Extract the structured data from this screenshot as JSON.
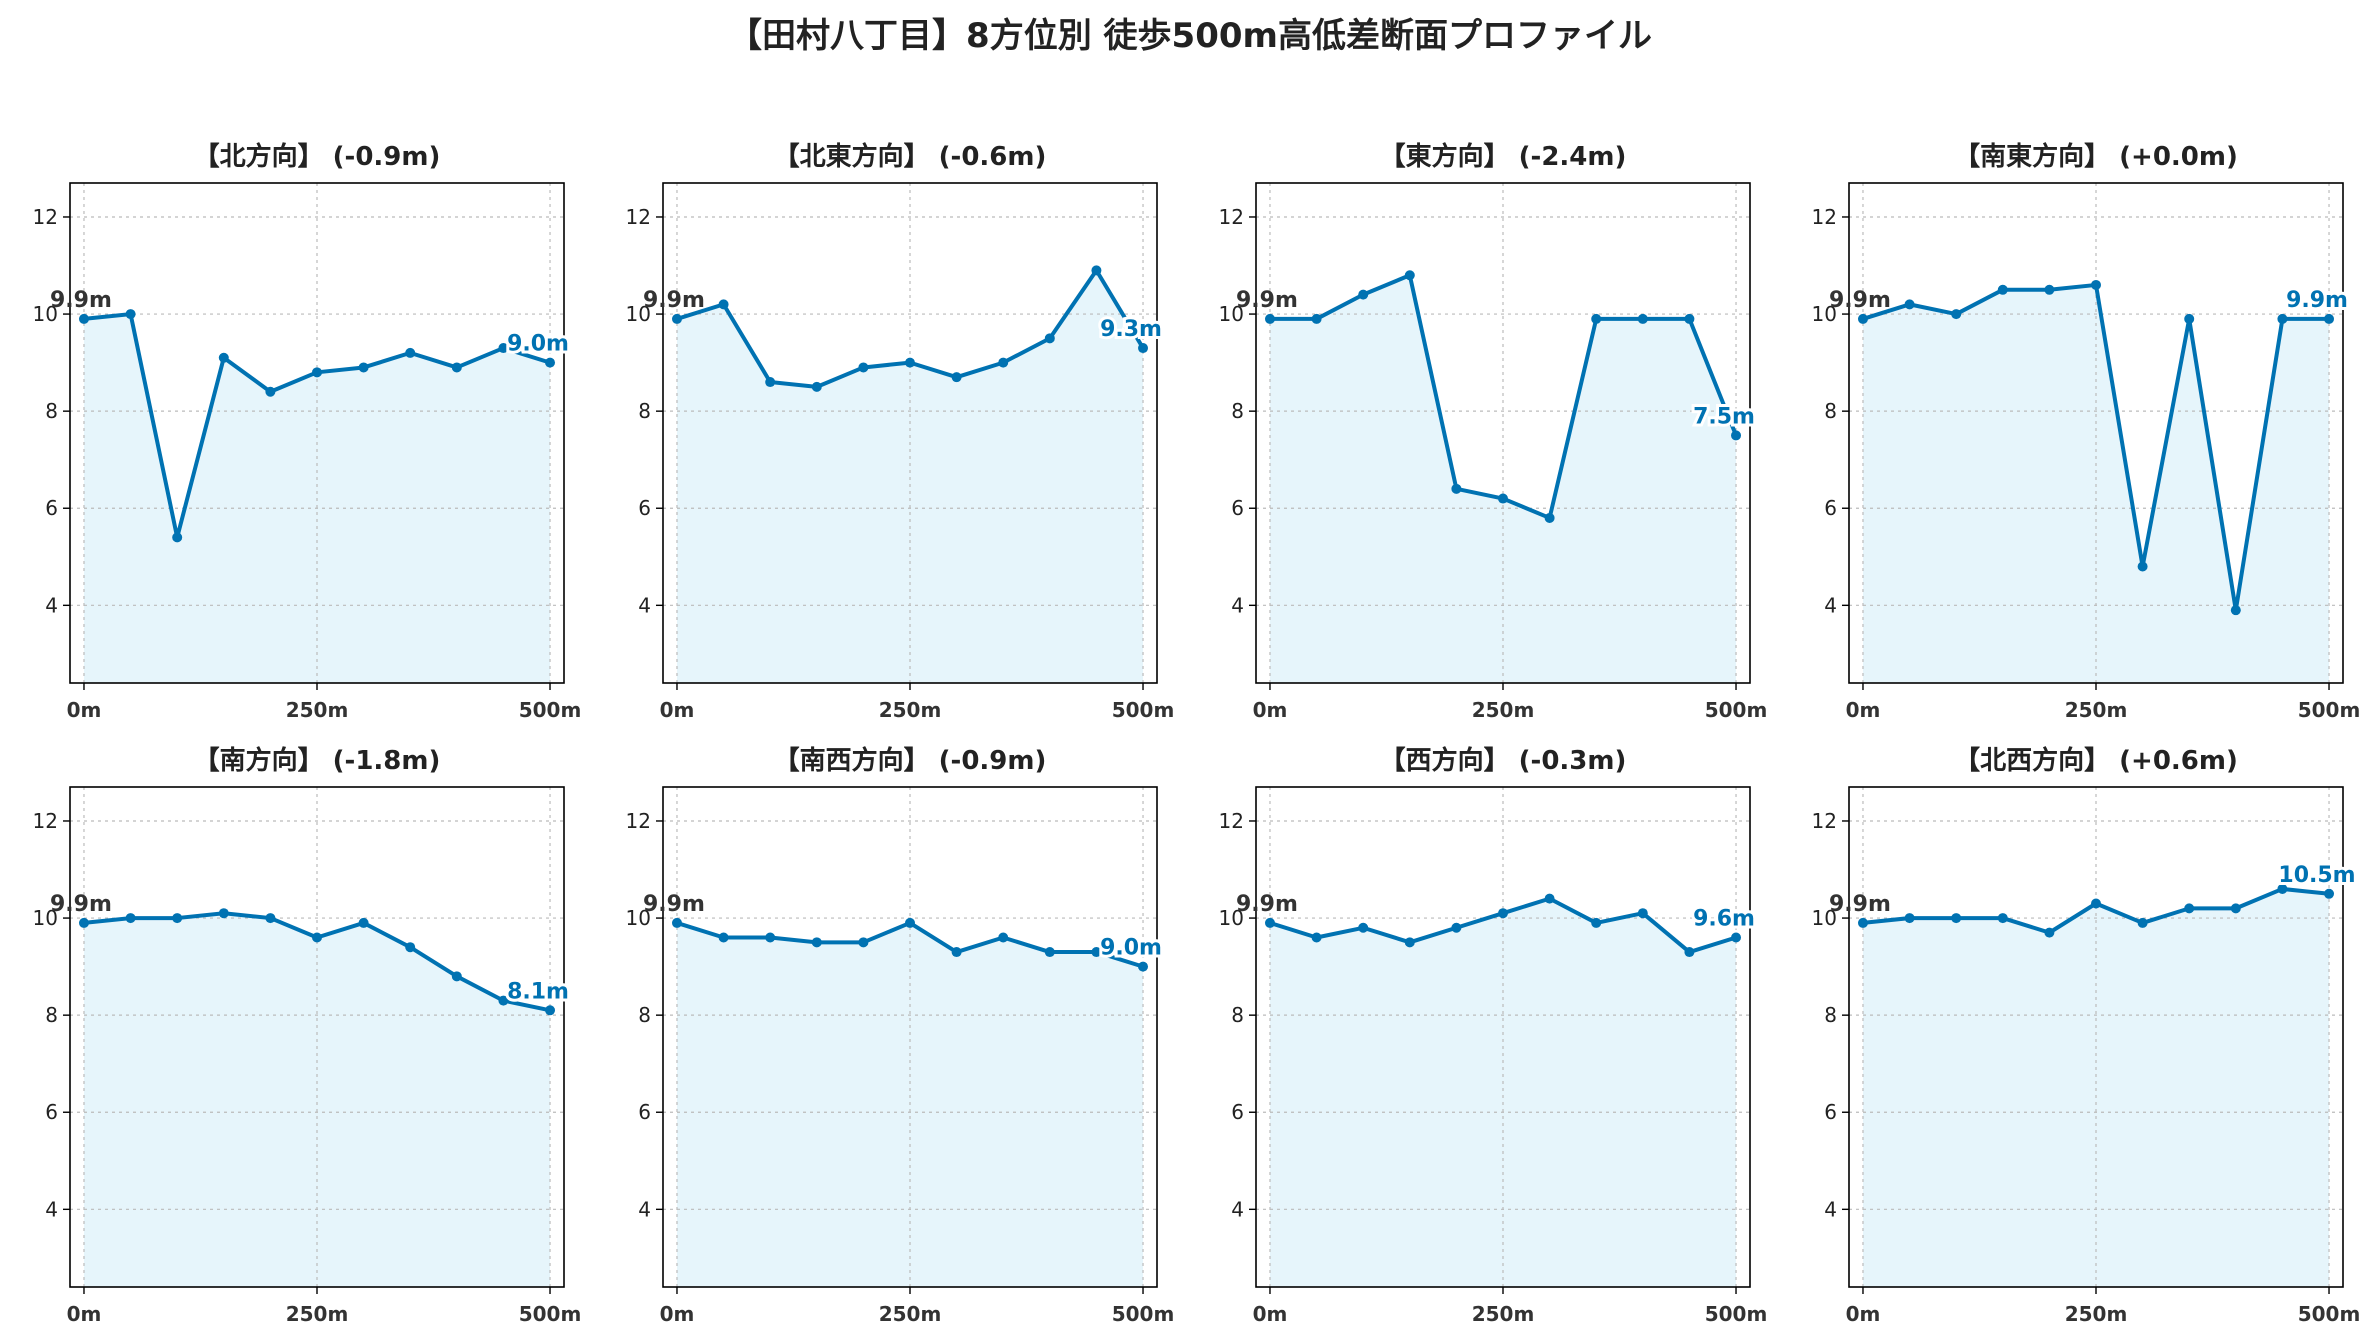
{
  "title": "【田村八丁目】8方位別 徒歩500m高低差断面プロファイル",
  "colors": {
    "line": "#0072b2",
    "fill": "#e6f5fb",
    "start_label": "#333333",
    "end_label": "#0072b2",
    "grid": "#bbbbbb",
    "axis": "#000000"
  },
  "chart_data": [
    {
      "type": "line",
      "title": "【北方向】 (-0.9m)",
      "x": [
        0,
        50,
        100,
        150,
        200,
        250,
        300,
        350,
        400,
        450,
        500
      ],
      "values": [
        9.9,
        10.0,
        5.4,
        9.1,
        8.4,
        8.8,
        8.9,
        9.2,
        8.9,
        9.3,
        9.0
      ],
      "start_label": "9.9m",
      "end_label": "9.0m",
      "xticks": [
        "0m",
        "250m",
        "500m"
      ],
      "yticks": [
        "4",
        "6",
        "8",
        "10",
        "12"
      ],
      "xlim": [
        -15,
        515
      ],
      "ylim": [
        2.4,
        12.7
      ],
      "grid": true
    },
    {
      "type": "line",
      "title": "【北東方向】 (-0.6m)",
      "x": [
        0,
        50,
        100,
        150,
        200,
        250,
        300,
        350,
        400,
        450,
        500
      ],
      "values": [
        9.9,
        10.2,
        8.6,
        8.5,
        8.9,
        9.0,
        8.7,
        9.0,
        9.5,
        10.9,
        9.3
      ],
      "start_label": "9.9m",
      "end_label": "9.3m",
      "xticks": [
        "0m",
        "250m",
        "500m"
      ],
      "yticks": [
        "4",
        "6",
        "8",
        "10",
        "12"
      ],
      "xlim": [
        -15,
        515
      ],
      "ylim": [
        2.4,
        12.7
      ],
      "grid": true
    },
    {
      "type": "line",
      "title": "【東方向】 (-2.4m)",
      "x": [
        0,
        50,
        100,
        150,
        200,
        250,
        300,
        350,
        400,
        450,
        500
      ],
      "values": [
        9.9,
        9.9,
        10.4,
        10.8,
        6.4,
        6.2,
        5.8,
        9.9,
        9.9,
        9.9,
        7.5
      ],
      "start_label": "9.9m",
      "end_label": "7.5m",
      "xticks": [
        "0m",
        "250m",
        "500m"
      ],
      "yticks": [
        "4",
        "6",
        "8",
        "10",
        "12"
      ],
      "xlim": [
        -15,
        515
      ],
      "ylim": [
        2.4,
        12.7
      ],
      "grid": true
    },
    {
      "type": "line",
      "title": "【南東方向】 (+0.0m)",
      "x": [
        0,
        50,
        100,
        150,
        200,
        250,
        300,
        350,
        400,
        450,
        500
      ],
      "values": [
        9.9,
        10.2,
        10.0,
        10.5,
        10.5,
        10.6,
        4.8,
        9.9,
        3.9,
        9.9,
        9.9
      ],
      "start_label": "9.9m",
      "end_label": "9.9m",
      "xticks": [
        "0m",
        "250m",
        "500m"
      ],
      "yticks": [
        "4",
        "6",
        "8",
        "10",
        "12"
      ],
      "xlim": [
        -15,
        515
      ],
      "ylim": [
        2.4,
        12.7
      ],
      "grid": true
    },
    {
      "type": "line",
      "title": "【南方向】 (-1.8m)",
      "x": [
        0,
        50,
        100,
        150,
        200,
        250,
        300,
        350,
        400,
        450,
        500
      ],
      "values": [
        9.9,
        10.0,
        10.0,
        10.1,
        10.0,
        9.6,
        9.9,
        9.4,
        8.8,
        8.3,
        8.1
      ],
      "start_label": "9.9m",
      "end_label": "8.1m",
      "xticks": [
        "0m",
        "250m",
        "500m"
      ],
      "yticks": [
        "4",
        "6",
        "8",
        "10",
        "12"
      ],
      "xlim": [
        -15,
        515
      ],
      "ylim": [
        2.4,
        12.7
      ],
      "grid": true
    },
    {
      "type": "line",
      "title": "【南西方向】 (-0.9m)",
      "x": [
        0,
        50,
        100,
        150,
        200,
        250,
        300,
        350,
        400,
        450,
        500
      ],
      "values": [
        9.9,
        9.6,
        9.6,
        9.5,
        9.5,
        9.9,
        9.3,
        9.6,
        9.3,
        9.3,
        9.0
      ],
      "start_label": "9.9m",
      "end_label": "9.0m",
      "xticks": [
        "0m",
        "250m",
        "500m"
      ],
      "yticks": [
        "4",
        "6",
        "8",
        "10",
        "12"
      ],
      "xlim": [
        -15,
        515
      ],
      "ylim": [
        2.4,
        12.7
      ],
      "grid": true
    },
    {
      "type": "line",
      "title": "【西方向】 (-0.3m)",
      "x": [
        0,
        50,
        100,
        150,
        200,
        250,
        300,
        350,
        400,
        450,
        500
      ],
      "values": [
        9.9,
        9.6,
        9.8,
        9.5,
        9.8,
        10.1,
        10.4,
        9.9,
        10.1,
        9.3,
        9.6
      ],
      "start_label": "9.9m",
      "end_label": "9.6m",
      "xticks": [
        "0m",
        "250m",
        "500m"
      ],
      "yticks": [
        "4",
        "6",
        "8",
        "10",
        "12"
      ],
      "xlim": [
        -15,
        515
      ],
      "ylim": [
        2.4,
        12.7
      ],
      "grid": true
    },
    {
      "type": "line",
      "title": "【北西方向】 (+0.6m)",
      "x": [
        0,
        50,
        100,
        150,
        200,
        250,
        300,
        350,
        400,
        450,
        500
      ],
      "values": [
        9.9,
        10.0,
        10.0,
        10.0,
        9.7,
        10.3,
        9.9,
        10.2,
        10.2,
        10.6,
        10.5
      ],
      "start_label": "9.9m",
      "end_label": "10.5m",
      "xticks": [
        "0m",
        "250m",
        "500m"
      ],
      "yticks": [
        "4",
        "6",
        "8",
        "10",
        "12"
      ],
      "xlim": [
        -15,
        515
      ],
      "ylim": [
        2.4,
        12.7
      ],
      "grid": true
    }
  ]
}
